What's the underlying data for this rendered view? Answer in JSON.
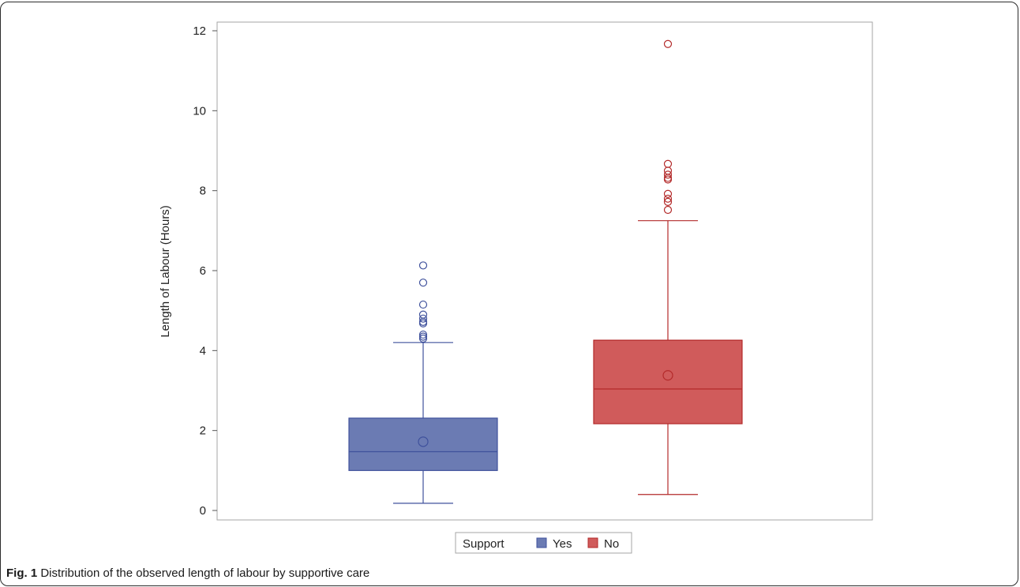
{
  "chart_data": {
    "type": "boxplot",
    "ylabel": "Length of Labour (Hours)",
    "xlabel": "",
    "ylim": [
      0,
      12
    ],
    "yticks": [
      "0",
      "2",
      "4",
      "6",
      "8",
      "10",
      "12"
    ],
    "grid": false,
    "legend": {
      "title": "Support",
      "placement": "bottom",
      "entries": [
        "Yes",
        "No"
      ]
    },
    "series": [
      {
        "name": "Yes",
        "color": "#6b7bb3",
        "stroke": "#3f519c",
        "whisker_low": 0.18,
        "q1": 1.0,
        "median": 1.47,
        "q3": 2.31,
        "whisker_high": 4.2,
        "mean": 1.72,
        "outliers": [
          4.3,
          4.35,
          4.4,
          4.68,
          4.72,
          4.8,
          4.9,
          5.15,
          5.7,
          6.13
        ]
      },
      {
        "name": "No",
        "color": "#d05b5b",
        "stroke": "#b32a2a",
        "whisker_low": 0.4,
        "q1": 2.17,
        "median": 3.04,
        "q3": 4.26,
        "whisker_high": 7.25,
        "mean": 3.38,
        "outliers": [
          7.52,
          7.72,
          7.8,
          7.92,
          8.28,
          8.32,
          8.4,
          8.5,
          8.67,
          11.67
        ]
      }
    ]
  },
  "caption": {
    "label": "Fig. 1",
    "text": " Distribution of the observed length of labour by supportive care"
  }
}
